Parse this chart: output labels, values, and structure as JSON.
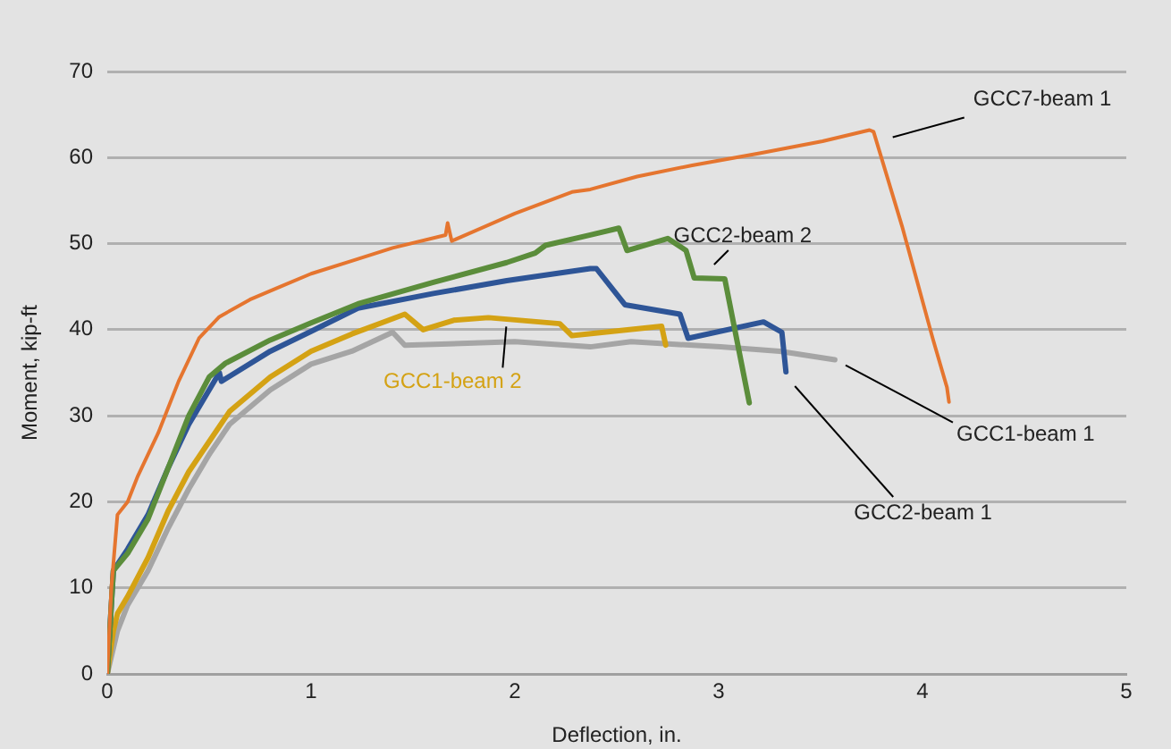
{
  "chart_data": {
    "type": "line",
    "xlabel": "Deflection, in.",
    "ylabel": "Moment, kip-ft",
    "xlim": [
      0,
      5
    ],
    "xticks": [
      0,
      1,
      2,
      3,
      4,
      5
    ],
    "ylim": [
      0,
      70
    ],
    "yticks": [
      0,
      10,
      20,
      30,
      40,
      50,
      60,
      70
    ],
    "grid": "y",
    "legend": false,
    "marker": "none",
    "line_style": "solid",
    "series": [
      {
        "name": "GCC7-beam 1",
        "color": "#e5752f",
        "x": [
          0,
          0.02,
          0.05,
          0.1,
          0.15,
          0.25,
          0.35,
          0.45,
          0.55,
          0.7,
          0.85,
          1,
          1.2,
          1.4,
          1.66,
          1.67,
          1.69,
          2,
          2.28,
          2.37,
          2.6,
          2.87,
          3.2,
          3.51,
          3.74,
          3.76,
          3.9,
          4.05,
          4.12,
          4.13
        ],
        "values": [
          0,
          10,
          18.5,
          20,
          23,
          28,
          34,
          39,
          41.5,
          43.5,
          45,
          46.5,
          48,
          49.5,
          51,
          52.4,
          50.3,
          53.5,
          56,
          56.3,
          57.8,
          59.1,
          60.5,
          61.9,
          63.2,
          63,
          52,
          39,
          33.3,
          31.6
        ]
      },
      {
        "name": "GCC2-beam 2",
        "color": "#5b8d3b",
        "x": [
          0,
          0.03,
          0.1,
          0.2,
          0.3,
          0.4,
          0.5,
          0.58,
          0.8,
          1,
          1.23,
          1.6,
          1.96,
          2.1,
          2.15,
          2.37,
          2.51,
          2.55,
          2.75,
          2.84,
          2.88,
          3.03,
          3.15
        ],
        "values": [
          0,
          12,
          14,
          18,
          24,
          30,
          34.5,
          36.1,
          38.8,
          40.8,
          43,
          45.5,
          47.8,
          48.9,
          49.8,
          51,
          51.8,
          49.2,
          50.6,
          49.2,
          46,
          45.9,
          31.5
        ]
      },
      {
        "name": "GCC2-beam 1",
        "color": "#2e5597",
        "x": [
          0,
          0.03,
          0.1,
          0.2,
          0.3,
          0.4,
          0.5,
          0.55,
          0.56,
          0.8,
          1,
          1.23,
          1.6,
          1.96,
          2.37,
          2.4,
          2.54,
          2.81,
          2.85,
          3.22,
          3.31,
          3.33
        ],
        "values": [
          0,
          12,
          14.5,
          18.5,
          24,
          29,
          33,
          35,
          34,
          37.5,
          39.8,
          42.5,
          44.2,
          45.7,
          47.1,
          47.1,
          42.9,
          41.8,
          39,
          40.9,
          39.7,
          35.1
        ]
      },
      {
        "name": "GCC1-beam 2",
        "color": "#d4a214",
        "x": [
          0,
          0.03,
          0.05,
          0.1,
          0.2,
          0.3,
          0.4,
          0.5,
          0.6,
          0.8,
          1,
          1.2,
          1.46,
          1.55,
          1.7,
          1.87,
          2.22,
          2.28,
          2.72,
          2.74
        ],
        "values": [
          0,
          5,
          7,
          9,
          13.5,
          19,
          23.5,
          27,
          30.5,
          34.5,
          37.5,
          39.5,
          41.8,
          40,
          41.1,
          41.4,
          40.7,
          39.3,
          40.4,
          38.2
        ]
      },
      {
        "name": "GCC1-beam 1",
        "color": "#a5a5a5",
        "x": [
          0,
          0.05,
          0.1,
          0.2,
          0.3,
          0.4,
          0.5,
          0.6,
          0.8,
          1,
          1.2,
          1.4,
          1.46,
          2,
          2.37,
          2.57,
          3.01,
          3.3,
          3.57
        ],
        "values": [
          0,
          5,
          8,
          12,
          17,
          21.5,
          25.5,
          29,
          33,
          36,
          37.5,
          39.7,
          38.2,
          38.6,
          38,
          38.6,
          38,
          37.5,
          36.5
        ]
      }
    ]
  }
}
